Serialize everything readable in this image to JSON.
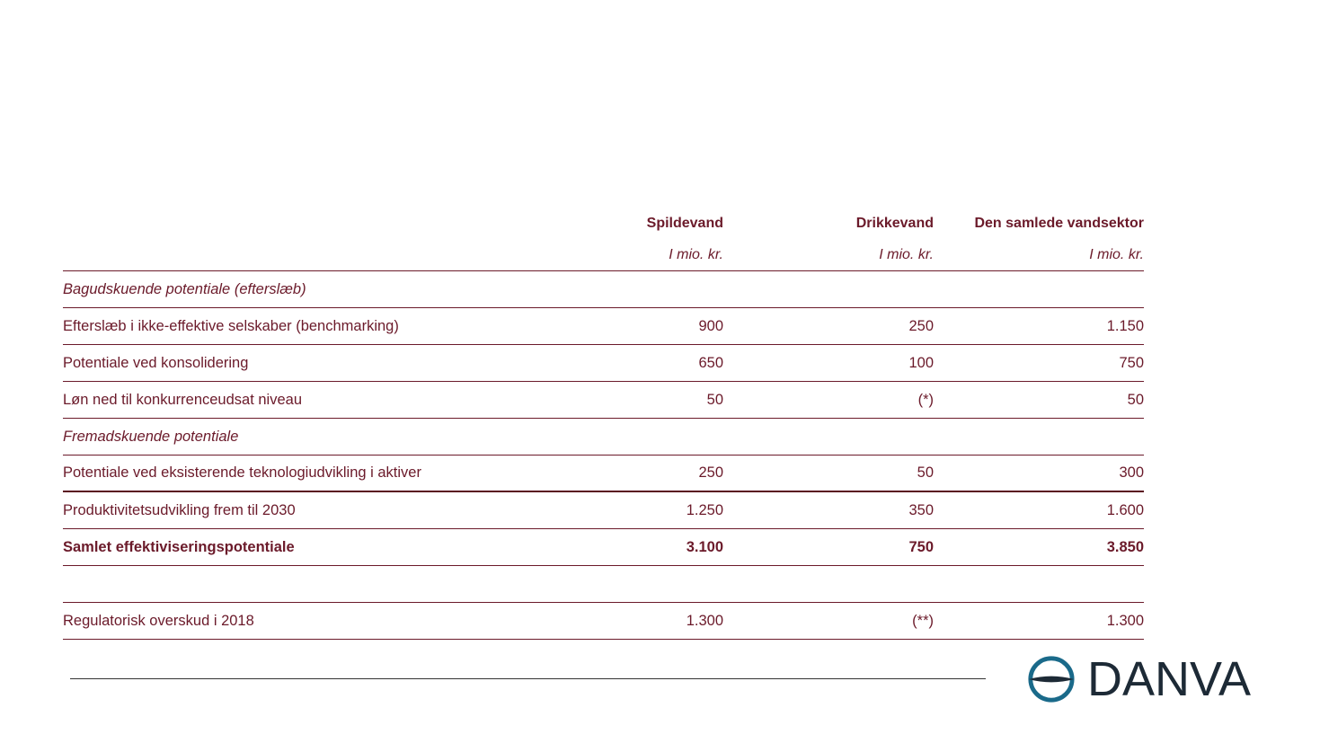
{
  "table": {
    "columns": [
      "Spildevand",
      "Drikkevand",
      "Den samlede vandsektor"
    ],
    "units": [
      "I mio. kr.",
      "I mio. kr.",
      "I mio. kr."
    ],
    "rows": [
      {
        "label": "Bagudskuende potentiale (efterslæb)",
        "v1": "",
        "v2": "",
        "v3": ""
      },
      {
        "label": "Efterslæb i ikke-effektive selskaber (benchmarking)",
        "v1": "900",
        "v2": "250",
        "v3": "1.150"
      },
      {
        "label": "Potentiale ved konsolidering",
        "v1": "650",
        "v2": "100",
        "v3": "750"
      },
      {
        "label": "Løn ned til konkurrenceudsat niveau",
        "v1": "50",
        "v2": "(*)",
        "v3": "50"
      },
      {
        "label": "Fremadskuende potentiale",
        "v1": "",
        "v2": "",
        "v3": ""
      },
      {
        "label": "Potentiale ved eksisterende teknologiudvikling i aktiver",
        "v1": "250",
        "v2": "50",
        "v3": "300"
      },
      {
        "label": "Produktivitetsudvikling frem til 2030",
        "v1": "1.250",
        "v2": "350",
        "v3": "1.600"
      },
      {
        "label": "Samlet effektiviseringspotentiale",
        "v1": "3.100",
        "v2": "750",
        "v3": "3.850"
      },
      {
        "label": "Regulatorisk overskud i 2018",
        "v1": "1.300",
        "v2": "(**)",
        "v3": "1.300"
      }
    ]
  },
  "logo": {
    "text": "DANVA",
    "icon": "danva-logo-icon",
    "colors": {
      "ring": "#1a6a8a",
      "text": "#1d2a36"
    }
  },
  "colors": {
    "text": "#6b1a2a",
    "rule": "#6b1a2a"
  }
}
